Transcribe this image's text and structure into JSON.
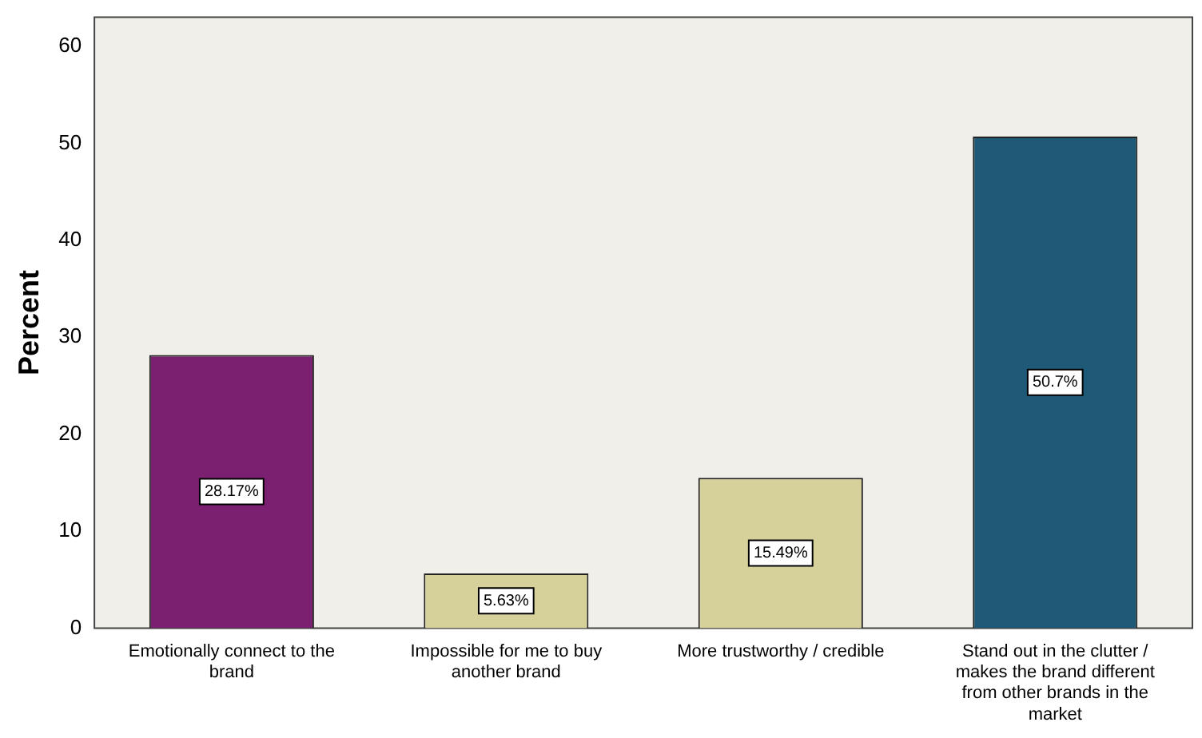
{
  "chart_data": {
    "type": "bar",
    "ylabel": "Percent",
    "categories": [
      "Emotionally connect to the brand",
      "Impossible for me to buy another brand",
      "More trustworthy / credible",
      "Stand out in the clutter / makes the brand different from other brands in the market"
    ],
    "values": [
      28.17,
      5.63,
      15.49,
      50.7
    ],
    "colors": [
      "#7b2070",
      "#d6d09b",
      "#d6d09b",
      "#1e5a78"
    ],
    "value_labels": [
      "28.17%",
      "5.63%",
      "15.49%",
      "50.7%"
    ],
    "ylim": [
      0,
      63
    ],
    "yticks": [
      0,
      10,
      20,
      30,
      40,
      50,
      60
    ],
    "grid": false,
    "legend": false
  }
}
